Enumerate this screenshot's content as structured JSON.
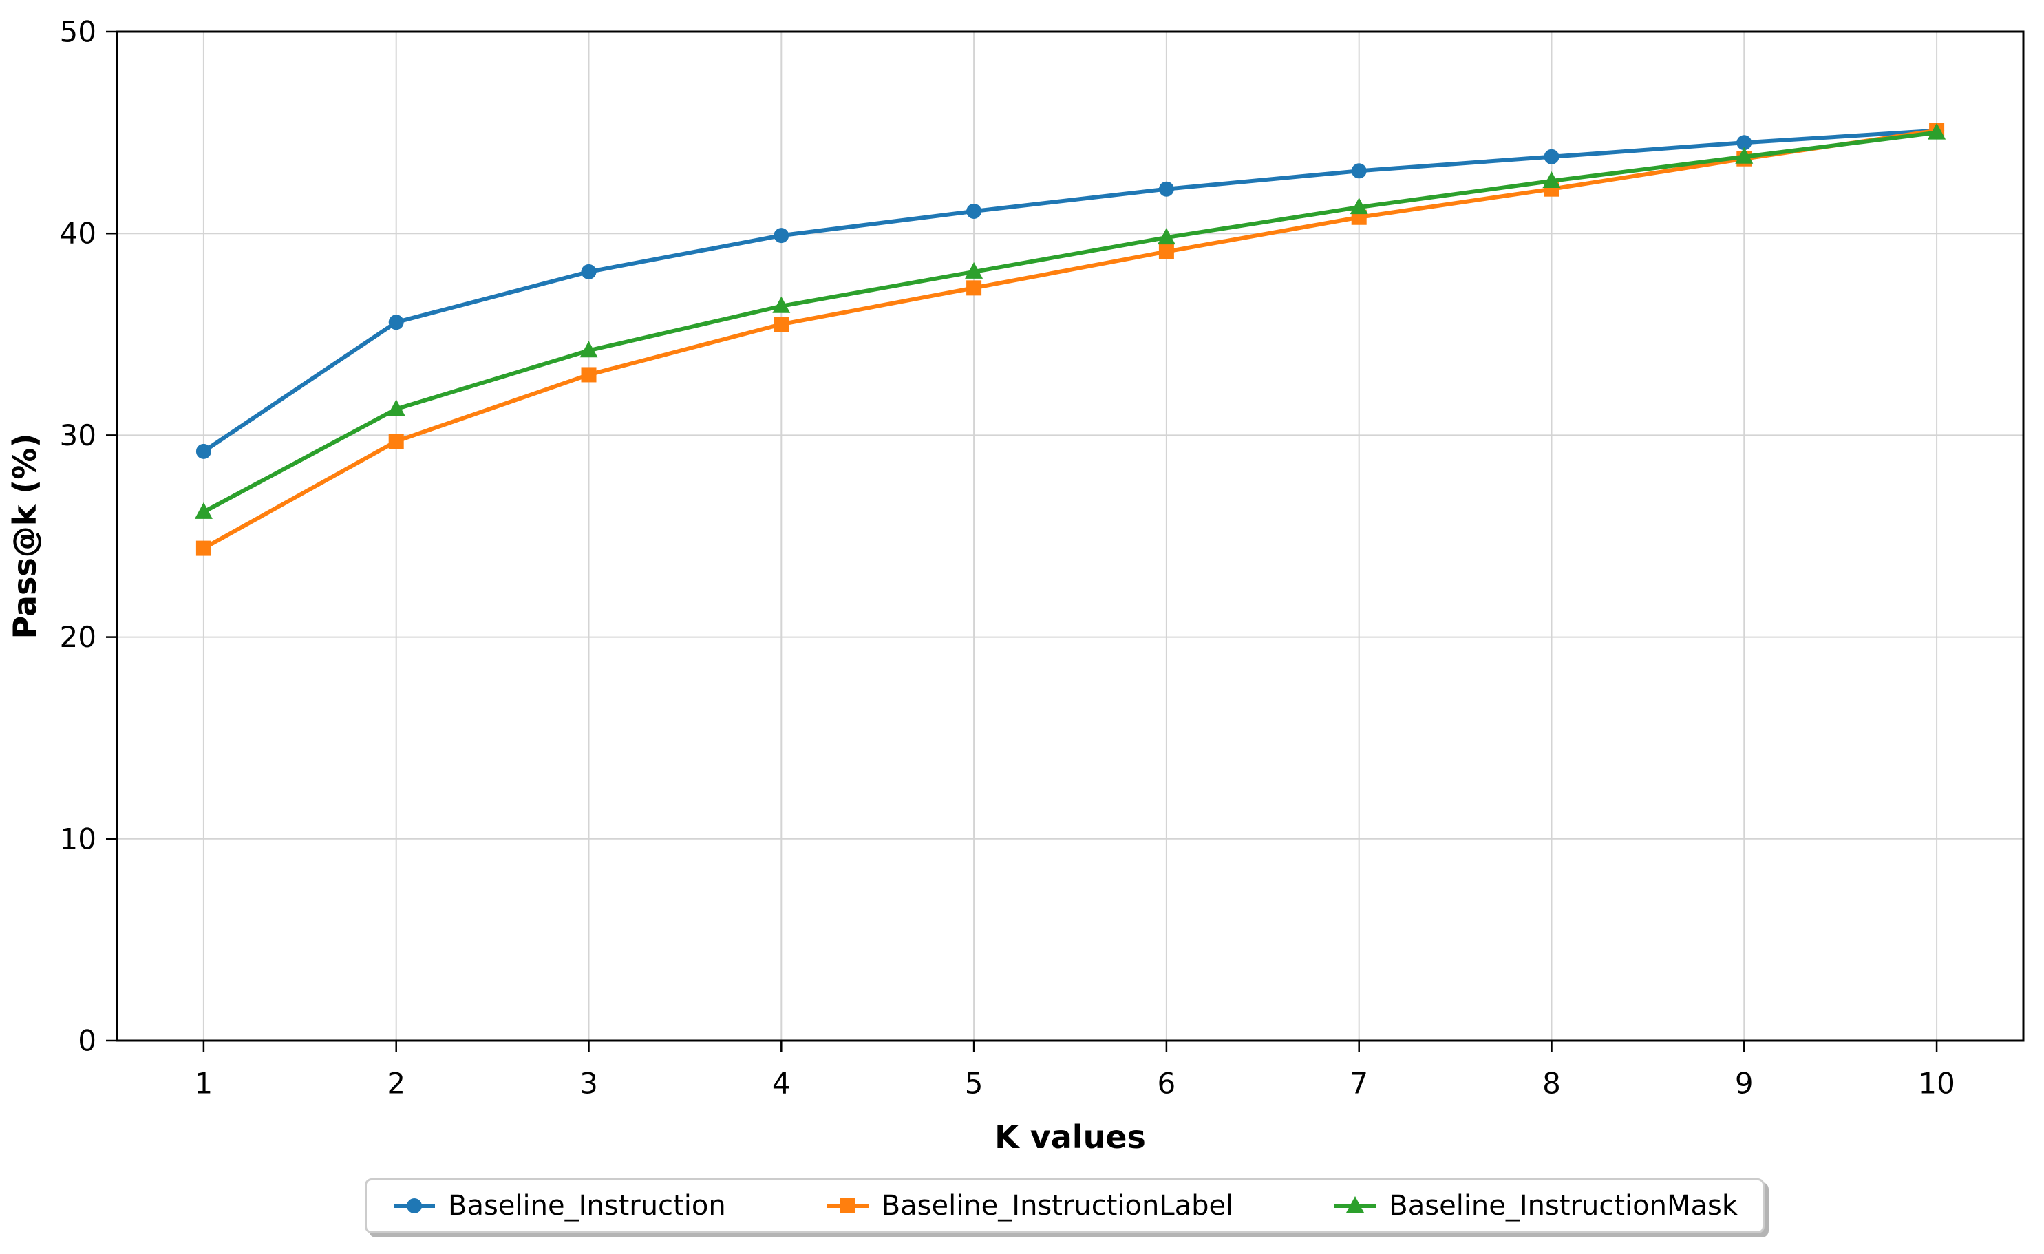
{
  "chart_data": {
    "type": "line",
    "x": [
      1,
      2,
      3,
      4,
      5,
      6,
      7,
      8,
      9,
      10
    ],
    "xlabel": "K values",
    "ylabel": "Pass@k (%)",
    "xlim": [
      0.55,
      10.45
    ],
    "ylim": [
      0,
      50
    ],
    "xticks": [
      1,
      2,
      3,
      4,
      5,
      6,
      7,
      8,
      9,
      10
    ],
    "yticks": [
      0,
      10,
      20,
      30,
      40,
      50
    ],
    "grid": true,
    "legend_position": "bottom-center",
    "series": [
      {
        "name": "Baseline_Instruction",
        "color": "#1f77b4",
        "marker": "circle",
        "values": [
          29.2,
          35.6,
          38.1,
          39.9,
          41.1,
          42.2,
          43.1,
          43.8,
          44.5,
          45.1
        ]
      },
      {
        "name": "Baseline_InstructionLabel",
        "color": "#ff7f0e",
        "marker": "square",
        "values": [
          24.4,
          29.7,
          33.0,
          35.5,
          37.3,
          39.1,
          40.8,
          42.2,
          43.7,
          45.1
        ]
      },
      {
        "name": "Baseline_InstructionMask",
        "color": "#2ca02c",
        "marker": "triangle",
        "values": [
          26.2,
          31.3,
          34.2,
          36.4,
          38.1,
          39.8,
          41.3,
          42.6,
          43.8,
          45.0
        ]
      }
    ],
    "colors": {
      "grid": "#d4d4d4",
      "spine": "#000000",
      "background": "#ffffff"
    }
  }
}
